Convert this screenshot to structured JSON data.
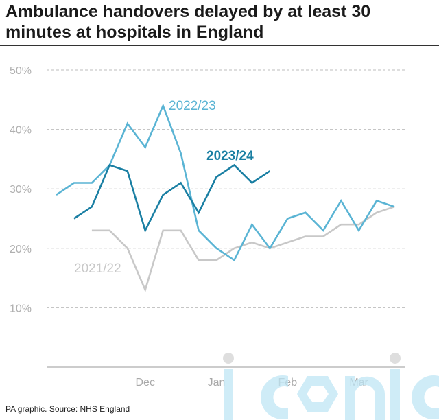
{
  "chart_data": {
    "type": "line",
    "title": "Ambulance handovers delayed by at least 30 minutes at hospitals in England",
    "source": "PA graphic. Source: NHS England",
    "ylim": [
      0,
      50
    ],
    "yticks": [
      10,
      20,
      30,
      40,
      50
    ],
    "ytick_labels": [
      "10%",
      "20%",
      "30%",
      "40%",
      "50%"
    ],
    "grid": true,
    "x_weeks": 20,
    "x_month_labels": [
      {
        "label": "Dec",
        "week": 5
      },
      {
        "label": "Jan",
        "week": 9
      },
      {
        "label": "Feb",
        "week": 13
      },
      {
        "label": "Mar",
        "week": 17
      }
    ],
    "series": [
      {
        "name": "2021/22",
        "color": "#c8c8c8",
        "start_week": 2,
        "values": [
          23,
          23,
          20,
          13,
          23,
          23,
          18,
          18,
          20,
          21,
          20,
          21,
          22,
          22,
          24,
          24,
          26,
          27
        ]
      },
      {
        "name": "2022/23",
        "color": "#5ab4d4",
        "start_week": 0,
        "values": [
          29,
          31,
          31,
          34,
          41,
          37,
          44,
          36,
          23,
          20,
          18,
          24,
          20,
          25,
          26,
          23,
          28,
          23,
          28,
          27
        ]
      },
      {
        "name": "2023/24",
        "color": "#1a7fa3",
        "start_week": 1,
        "values": [
          25,
          27,
          34,
          33,
          23,
          29,
          31,
          26,
          32,
          34,
          31,
          33
        ]
      }
    ]
  }
}
